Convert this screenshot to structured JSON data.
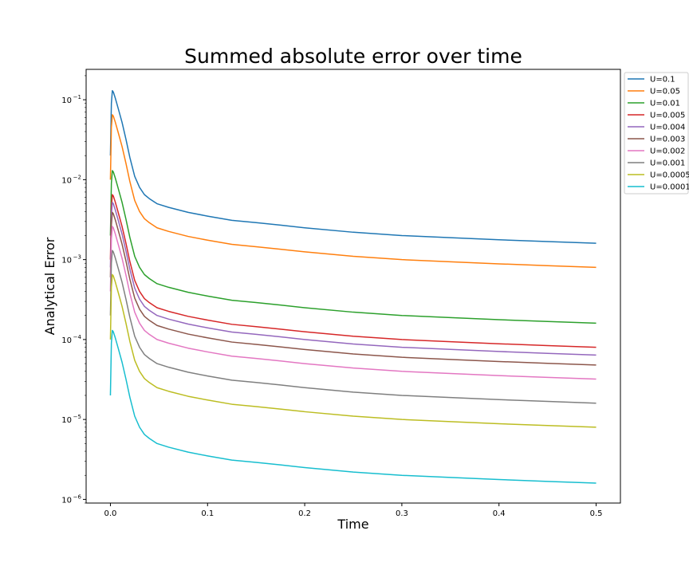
{
  "chart_data": {
    "type": "line",
    "title": "Summed absolute error over time",
    "xlabel": "Time",
    "ylabel": "Analytical Error",
    "xlim": [
      -0.025,
      0.525
    ],
    "ylim": [
      9e-07,
      0.24
    ],
    "yscale": "log",
    "x_ticks": [
      0.0,
      0.1,
      0.2,
      0.3,
      0.4,
      0.5
    ],
    "x_tick_labels": [
      "0.0",
      "0.1",
      "0.2",
      "0.3",
      "0.4",
      "0.5"
    ],
    "y_ticks": [
      {
        "value": 1e-06,
        "base": "10",
        "exp": "−6"
      },
      {
        "value": 1e-05,
        "base": "10",
        "exp": "−5"
      },
      {
        "value": 0.0001,
        "base": "10",
        "exp": "−4"
      },
      {
        "value": 0.001,
        "base": "10",
        "exp": "−3"
      },
      {
        "value": 0.01,
        "base": "10",
        "exp": "−2"
      },
      {
        "value": 0.1,
        "base": "10",
        "exp": "−1"
      }
    ],
    "grid": false,
    "legend": "outside-upper-right",
    "x": [
      0,
      0.001,
      0.002,
      0.003,
      0.005,
      0.008,
      0.012,
      0.016,
      0.02,
      0.025,
      0.03,
      0.035,
      0.04,
      0.048,
      0.06,
      0.08,
      0.1,
      0.125,
      0.15,
      0.175,
      0.2,
      0.25,
      0.3,
      0.35,
      0.4,
      0.45,
      0.5
    ],
    "base_profile": [
      0.2,
      0.9,
      1.3,
      1.25,
      1.05,
      0.78,
      0.52,
      0.32,
      0.19,
      0.11,
      0.08,
      0.065,
      0.058,
      0.05,
      0.045,
      0.039,
      0.035,
      0.031,
      0.029,
      0.027,
      0.025,
      0.022,
      0.02,
      0.0188,
      0.0177,
      0.0168,
      0.016
    ],
    "series": [
      {
        "name": "U=0.1",
        "scale": 0.1,
        "color": "#1f77b4"
      },
      {
        "name": "U=0.05",
        "scale": 0.05,
        "color": "#ff7f0e"
      },
      {
        "name": "U=0.01",
        "scale": 0.01,
        "color": "#2ca02c"
      },
      {
        "name": "U=0.005",
        "scale": 0.005,
        "color": "#d62728"
      },
      {
        "name": "U=0.004",
        "scale": 0.004,
        "color": "#9467bd"
      },
      {
        "name": "U=0.003",
        "scale": 0.003,
        "color": "#8c564b"
      },
      {
        "name": "U=0.002",
        "scale": 0.002,
        "color": "#e377c2"
      },
      {
        "name": "U=0.001",
        "scale": 0.001,
        "color": "#7f7f7f"
      },
      {
        "name": "U=0.0005",
        "scale": 0.0005,
        "color": "#bcbd22"
      },
      {
        "name": "U=0.0001",
        "scale": 0.0001,
        "color": "#17becf"
      }
    ]
  }
}
